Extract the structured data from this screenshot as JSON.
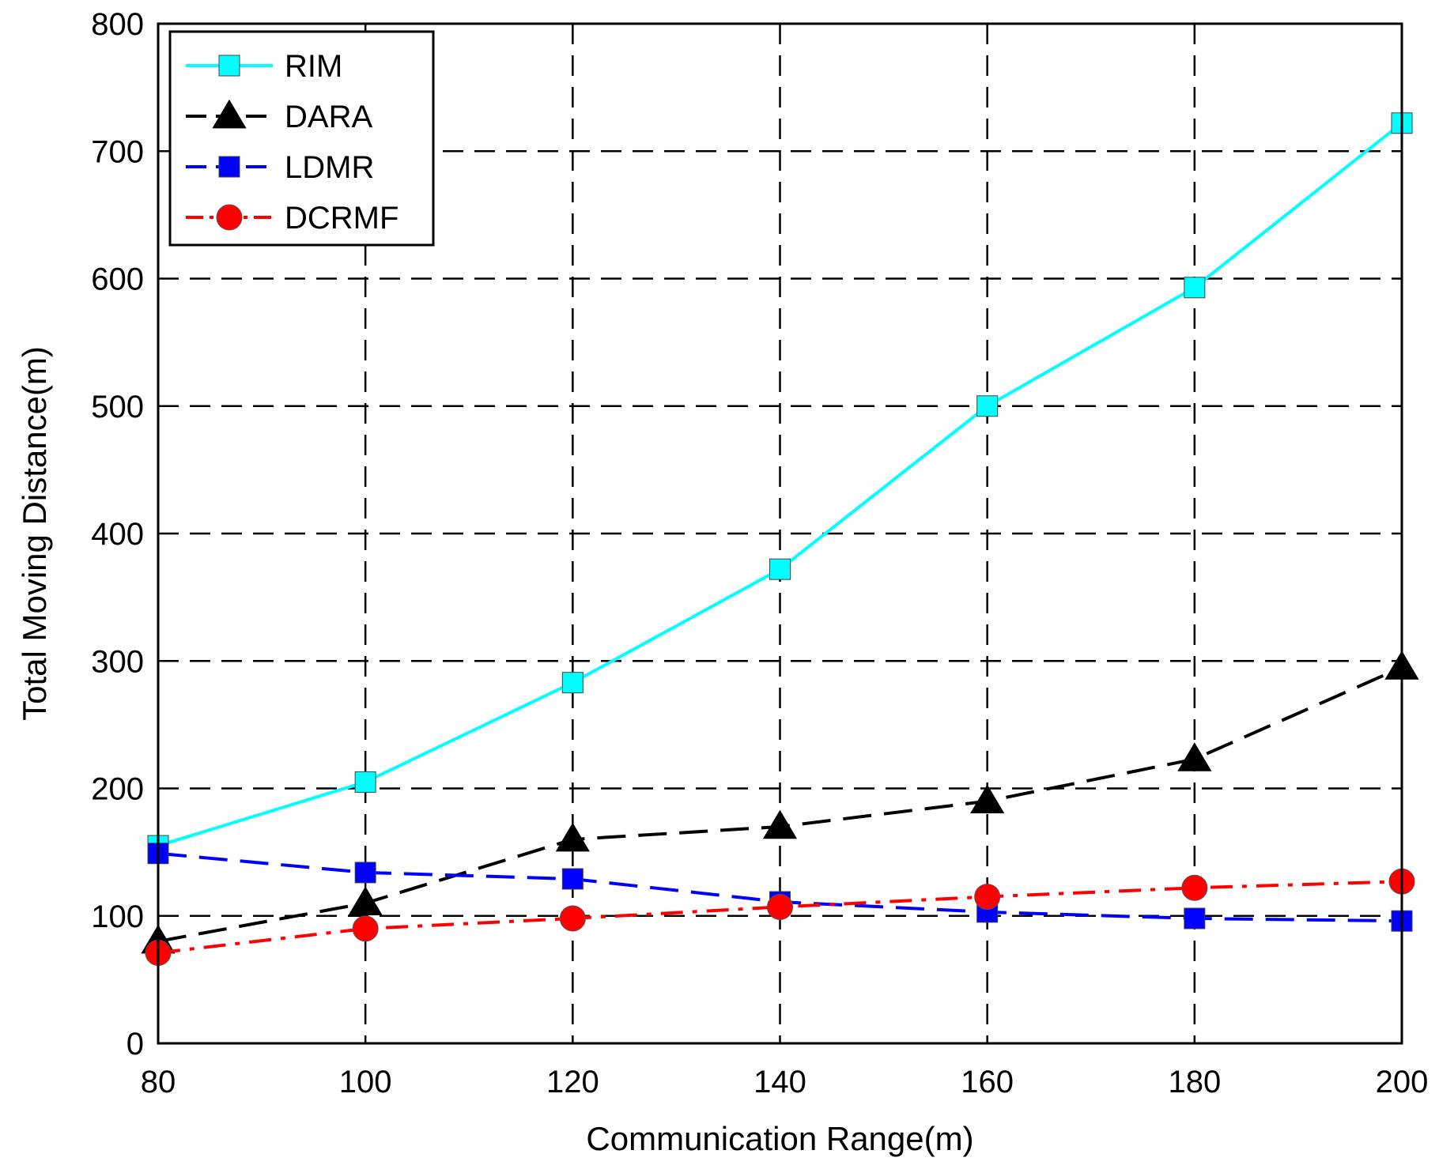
{
  "chart_data": {
    "type": "line",
    "title": "",
    "xlabel": "Communication Range(m)",
    "ylabel": "Total Moving Distance(m)",
    "x": [
      80,
      100,
      120,
      140,
      160,
      180,
      200
    ],
    "xlim": [
      80,
      200
    ],
    "ylim": [
      0,
      800
    ],
    "xticks": [
      "80",
      "100",
      "120",
      "140",
      "160",
      "180",
      "200"
    ],
    "yticks": [
      "0",
      "100",
      "200",
      "300",
      "400",
      "500",
      "600",
      "700",
      "800"
    ],
    "grid": true,
    "legend_position": "top-left",
    "series": [
      {
        "name": "RIM",
        "color": "#00FFFF",
        "line_style": "solid",
        "marker": "square",
        "values": [
          155,
          205,
          283,
          372,
          500,
          593,
          722
        ]
      },
      {
        "name": "DARA",
        "color": "#000000",
        "line_style": "dashed",
        "marker": "triangle",
        "values": [
          80,
          110,
          160,
          170,
          190,
          223,
          295
        ]
      },
      {
        "name": "LDMR",
        "color": "#0000FF",
        "line_style": "dashed",
        "marker": "square",
        "values": [
          149,
          134,
          129,
          111,
          103,
          98,
          96
        ]
      },
      {
        "name": "DCRMF",
        "color": "#FF0000",
        "line_style": "dash-dot",
        "marker": "circle",
        "values": [
          71,
          90,
          98,
          107,
          115,
          122,
          127
        ]
      }
    ]
  }
}
